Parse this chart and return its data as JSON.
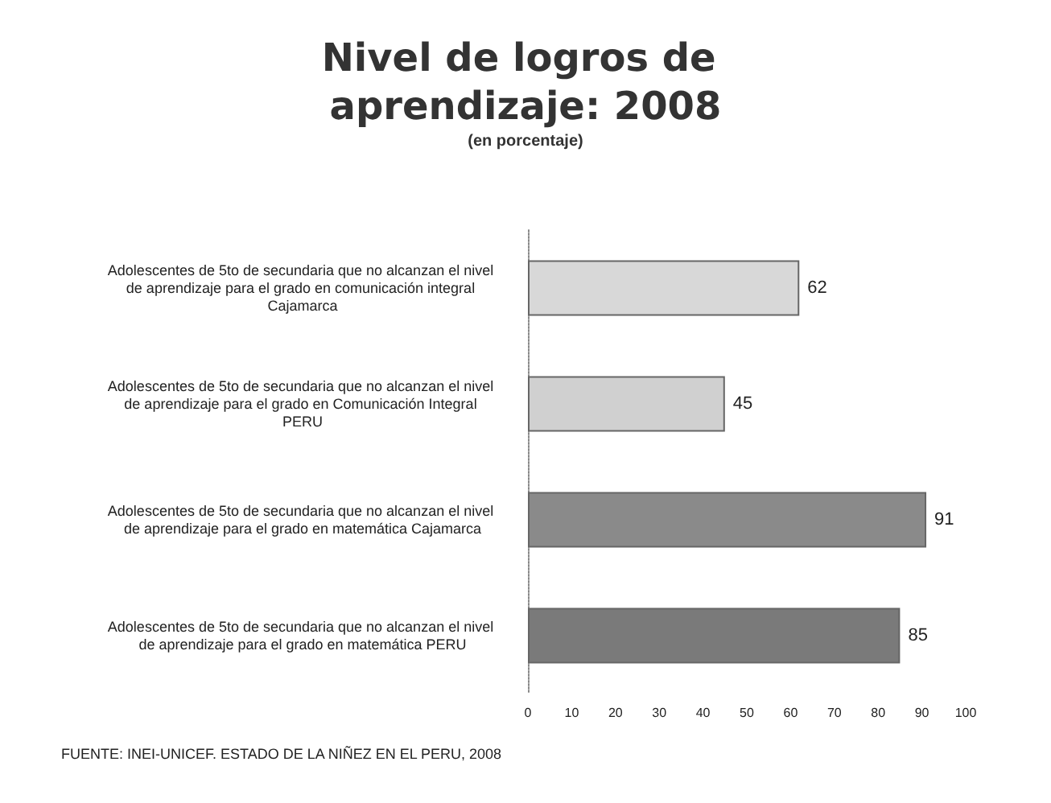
{
  "chart_data": {
    "type": "bar",
    "orientation": "horizontal",
    "title": "Nivel de logros de aprendizaje: 2008",
    "subtitle": "(en porcentaje)",
    "categories": [
      "Adolescentes de 5to de secundaria que no alcanzan el nivel de aprendizaje para el grado en comunicación integral Cajamarca",
      "Adolescentes de 5to de secundaria que no alcanzan el nivel de aprendizaje para el grado en Comunicación Integral PERU",
      "Adolescentes de 5to de secundaria que no alcanzan el nivel de aprendizaje para el grado en matemática Cajamarca",
      "Adolescentes de 5to de secundaria que no alcanzan el nivel de aprendizaje para el grado en matemática PERU"
    ],
    "values": [
      62,
      45,
      91,
      85
    ],
    "colors": [
      "#d8d8d8",
      "#d0d0d0",
      "#8a8a8a",
      "#7a7a7a"
    ],
    "xlim": [
      0,
      100
    ],
    "xticks": [
      0,
      10,
      20,
      30,
      40,
      50,
      60,
      70,
      80,
      90,
      100
    ],
    "data_labels": true,
    "grid": false,
    "annotations": [
      "FUENTE: INEI-UNICEF. ESTADO DE LA NIÑEZ EN EL PERU, 2008"
    ]
  }
}
